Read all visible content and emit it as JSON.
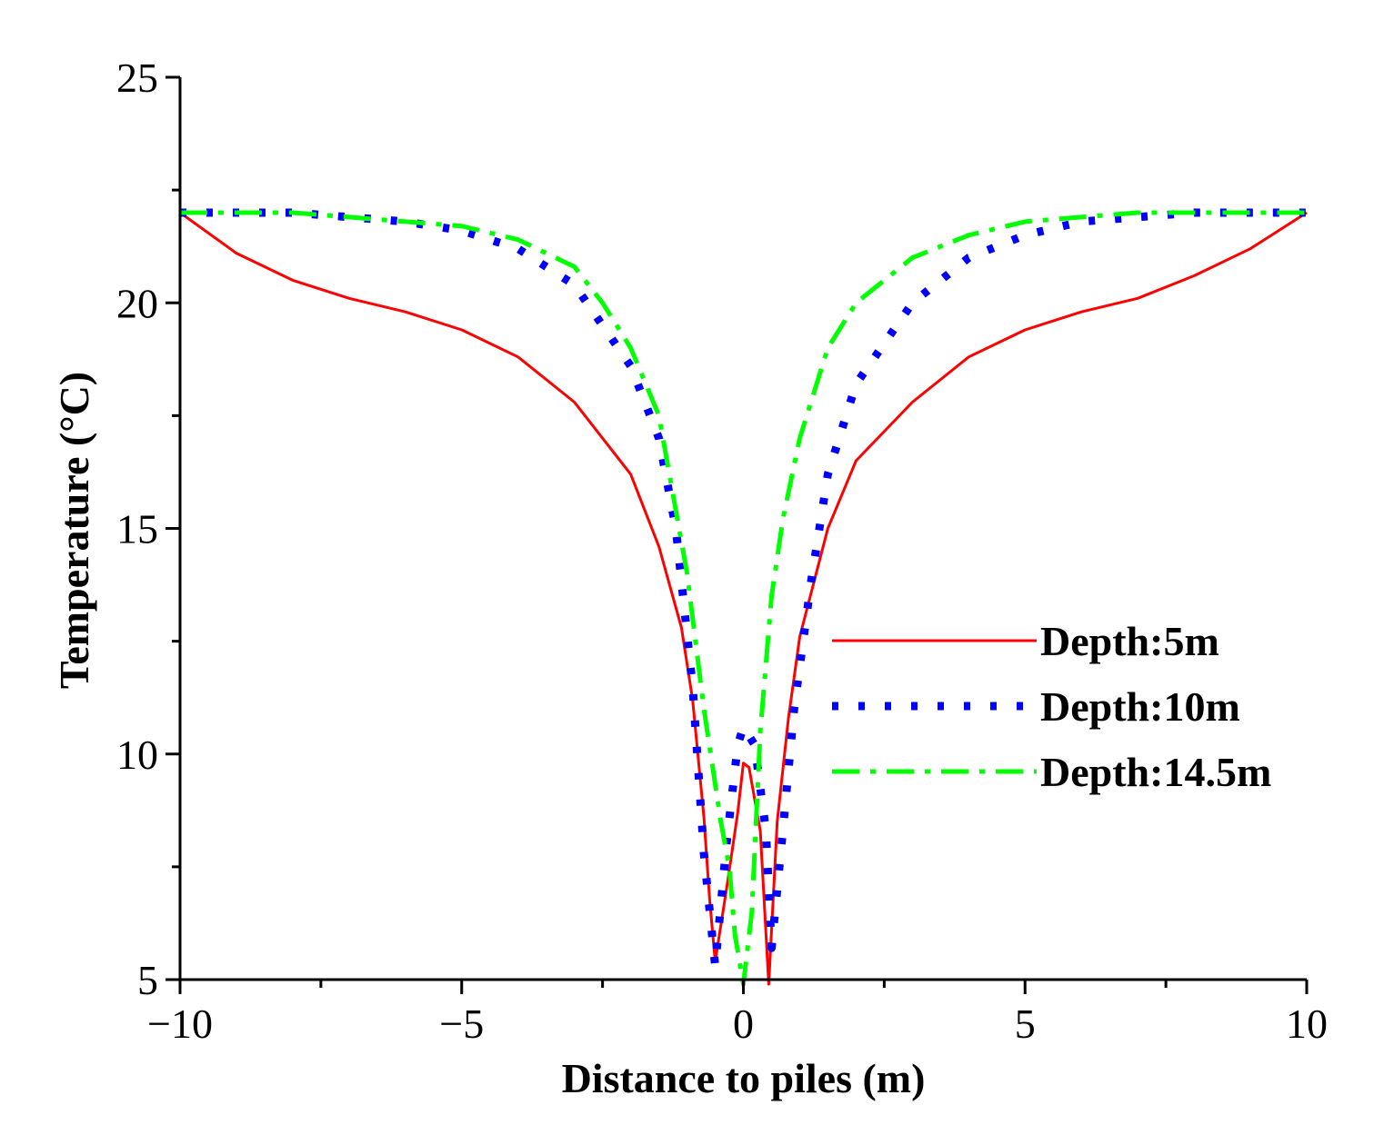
{
  "chart_data": {
    "type": "line",
    "title": "",
    "xlabel": "Distance to piles (m)",
    "ylabel": "Temperature (°C)",
    "xlim": [
      -10,
      10
    ],
    "ylim": [
      5,
      25
    ],
    "xticks": [
      -10,
      -5,
      0,
      5,
      10
    ],
    "yticks": [
      5,
      10,
      15,
      20,
      25
    ],
    "xtick_labels": [
      "−10",
      "−5",
      "0",
      "5",
      "10"
    ],
    "ytick_labels": [
      "5",
      "10",
      "15",
      "20",
      "25"
    ],
    "grid": false,
    "legend_position": "center-right",
    "series": [
      {
        "name": "Depth:5m",
        "color": "#ff0000",
        "style": "solid",
        "x": [
          -10,
          -9,
          -8,
          -7,
          -6,
          -5,
          -4,
          -3,
          -2,
          -1.5,
          -1.1,
          -0.9,
          -0.7,
          -0.6,
          -0.5,
          -0.3,
          -0.1,
          0,
          0.1,
          0.3,
          0.45,
          0.6,
          0.8,
          1,
          1.5,
          2,
          3,
          4,
          5,
          6,
          7,
          8,
          9,
          10
        ],
        "y": [
          22,
          21.1,
          20.5,
          20.1,
          19.8,
          19.4,
          18.8,
          17.8,
          16.2,
          14.6,
          12.8,
          11.2,
          8.6,
          6.8,
          5.4,
          7.0,
          8.7,
          9.8,
          9.7,
          8.3,
          4.9,
          8.5,
          10.8,
          12.6,
          15.0,
          16.5,
          17.8,
          18.8,
          19.4,
          19.8,
          20.1,
          20.6,
          21.2,
          22
        ]
      },
      {
        "name": "Depth:10m",
        "color": "#0000ff",
        "style": "dotted",
        "x": [
          -10,
          -9,
          -8,
          -7,
          -6,
          -5,
          -4,
          -3,
          -2,
          -1.5,
          -1.2,
          -0.9,
          -0.7,
          -0.5,
          -0.3,
          -0.1,
          0,
          0.2,
          0.4,
          0.5,
          0.7,
          0.9,
          1.2,
          1.5,
          2,
          3,
          4,
          5,
          6,
          7,
          8,
          9,
          10
        ],
        "y": [
          22,
          22,
          22,
          21.9,
          21.8,
          21.6,
          21.2,
          20.4,
          18.6,
          17.0,
          15.0,
          11.5,
          7.8,
          5.3,
          8.0,
          10.2,
          10.6,
          10.2,
          8.3,
          5.7,
          8.3,
          11.0,
          13.8,
          16.2,
          18.2,
          20.0,
          21.0,
          21.5,
          21.8,
          21.9,
          22,
          22,
          22
        ]
      },
      {
        "name": "Depth:14.5m",
        "color": "#00ff00",
        "style": "dashdot",
        "x": [
          -10,
          -9,
          -8,
          -7,
          -6,
          -5,
          -4,
          -3,
          -2.5,
          -2,
          -1.5,
          -1.0,
          -0.7,
          -0.4,
          -0.25,
          -0.15,
          0,
          0.15,
          0.3,
          0.5,
          0.7,
          1.0,
          1.5,
          2,
          3,
          4,
          5,
          6,
          7,
          8,
          9,
          10
        ],
        "y": [
          22,
          22,
          22,
          21.9,
          21.8,
          21.7,
          21.4,
          20.8,
          20.0,
          19.0,
          17.5,
          14.0,
          11.0,
          8.5,
          7.5,
          6.0,
          4.9,
          6.5,
          10.5,
          13.5,
          15.2,
          17.0,
          19.0,
          20.0,
          21.0,
          21.5,
          21.8,
          21.9,
          22,
          22,
          22,
          22
        ]
      }
    ]
  }
}
